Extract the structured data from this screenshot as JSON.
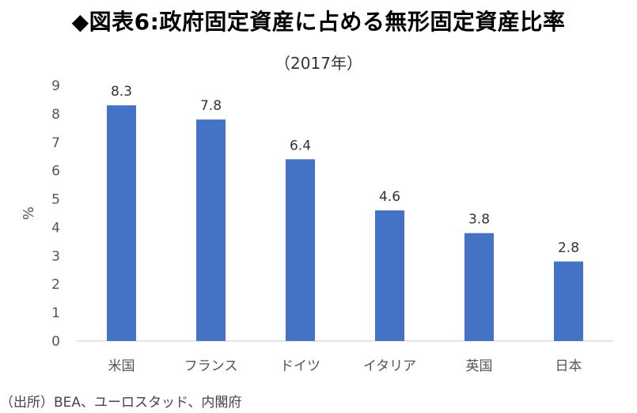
{
  "chart_data": {
    "type": "bar",
    "title": "◆図表6:政府固定資産に占める無形固定資産比率",
    "subtitle": "（2017年）",
    "xlabel": "",
    "ylabel": "%",
    "categories": [
      "米国",
      "フランス",
      "ドイツ",
      "イタリア",
      "英国",
      "日本"
    ],
    "values": [
      8.3,
      7.8,
      6.4,
      4.6,
      3.8,
      2.8
    ],
    "data_labels": [
      "8.3",
      "7.8",
      "6.4",
      "4.6",
      "3.8",
      "2.8"
    ],
    "ylim": [
      0,
      9
    ],
    "yticks": [
      "0",
      "1",
      "2",
      "3",
      "4",
      "5",
      "6",
      "7",
      "8",
      "9"
    ],
    "grid": false,
    "legend": "none",
    "bar_color": "#4472C4",
    "source": "（出所）BEA、ユーロスタッド、内閣府"
  }
}
